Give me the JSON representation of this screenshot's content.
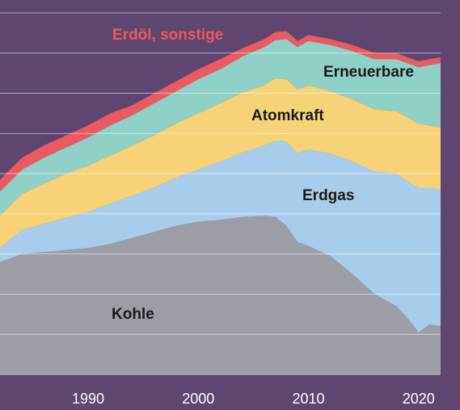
{
  "chart_data": {
    "type": "area",
    "stacked": true,
    "grid": true,
    "background": "#5e4671",
    "x": [
      1982,
      1984,
      1986,
      1988,
      1990,
      1992,
      1994,
      1996,
      1998,
      2000,
      2002,
      2004,
      2006,
      2007,
      2008,
      2009,
      2010,
      2012,
      2014,
      2016,
      2018,
      2019,
      2020,
      2021,
      2022
    ],
    "x_ticks": [
      "1990",
      "2000",
      "2010",
      "2020"
    ],
    "x_tick_values": [
      1990,
      2000,
      2010,
      2020
    ],
    "ylim": [
      0,
      9
    ],
    "series": [
      {
        "name": "Kohle",
        "color": "#9b9ea6",
        "label_color": "#1a1a1a",
        "values": [
          2.8,
          3.0,
          3.05,
          3.1,
          3.15,
          3.25,
          3.4,
          3.55,
          3.7,
          3.8,
          3.85,
          3.92,
          3.95,
          3.92,
          3.7,
          3.3,
          3.2,
          2.95,
          2.5,
          2.0,
          1.7,
          1.4,
          1.05,
          1.25,
          1.2
        ]
      },
      {
        "name": "Erdgas",
        "color": "#a7cdec",
        "label_color": "#1a1a1a",
        "values": [
          0.35,
          0.6,
          0.7,
          0.8,
          0.9,
          1.0,
          1.05,
          1.1,
          1.2,
          1.3,
          1.45,
          1.6,
          1.75,
          1.9,
          2.1,
          2.2,
          2.4,
          2.55,
          2.8,
          3.05,
          3.3,
          3.4,
          3.6,
          3.4,
          3.4
        ]
      },
      {
        "name": "Atomkraft",
        "color": "#f7d277",
        "label_color": "#1a1a1a",
        "values": [
          0.8,
          0.9,
          1.0,
          1.1,
          1.15,
          1.2,
          1.25,
          1.3,
          1.35,
          1.4,
          1.45,
          1.5,
          1.5,
          1.55,
          1.55,
          1.6,
          1.6,
          1.55,
          1.55,
          1.55,
          1.55,
          1.6,
          1.6,
          1.55,
          1.55
        ]
      },
      {
        "name": "Erneuerbare",
        "color": "#8fd1c6",
        "label_color": "#1a1a1a",
        "values": [
          0.6,
          0.6,
          0.65,
          0.65,
          0.7,
          0.75,
          0.75,
          0.8,
          0.8,
          0.85,
          0.85,
          0.9,
          0.95,
          0.95,
          1.0,
          1.05,
          1.1,
          1.15,
          1.2,
          1.25,
          1.3,
          1.35,
          1.4,
          1.5,
          1.6
        ]
      },
      {
        "name": "Erdöl, sonstige",
        "color": "#ea5a5f",
        "label_color": "#ea5a5f",
        "values": [
          0.3,
          0.3,
          0.3,
          0.3,
          0.3,
          0.3,
          0.25,
          0.25,
          0.25,
          0.25,
          0.25,
          0.2,
          0.2,
          0.2,
          0.2,
          0.15,
          0.15,
          0.15,
          0.15,
          0.15,
          0.15,
          0.15,
          0.15,
          0.15,
          0.15
        ]
      }
    ]
  }
}
